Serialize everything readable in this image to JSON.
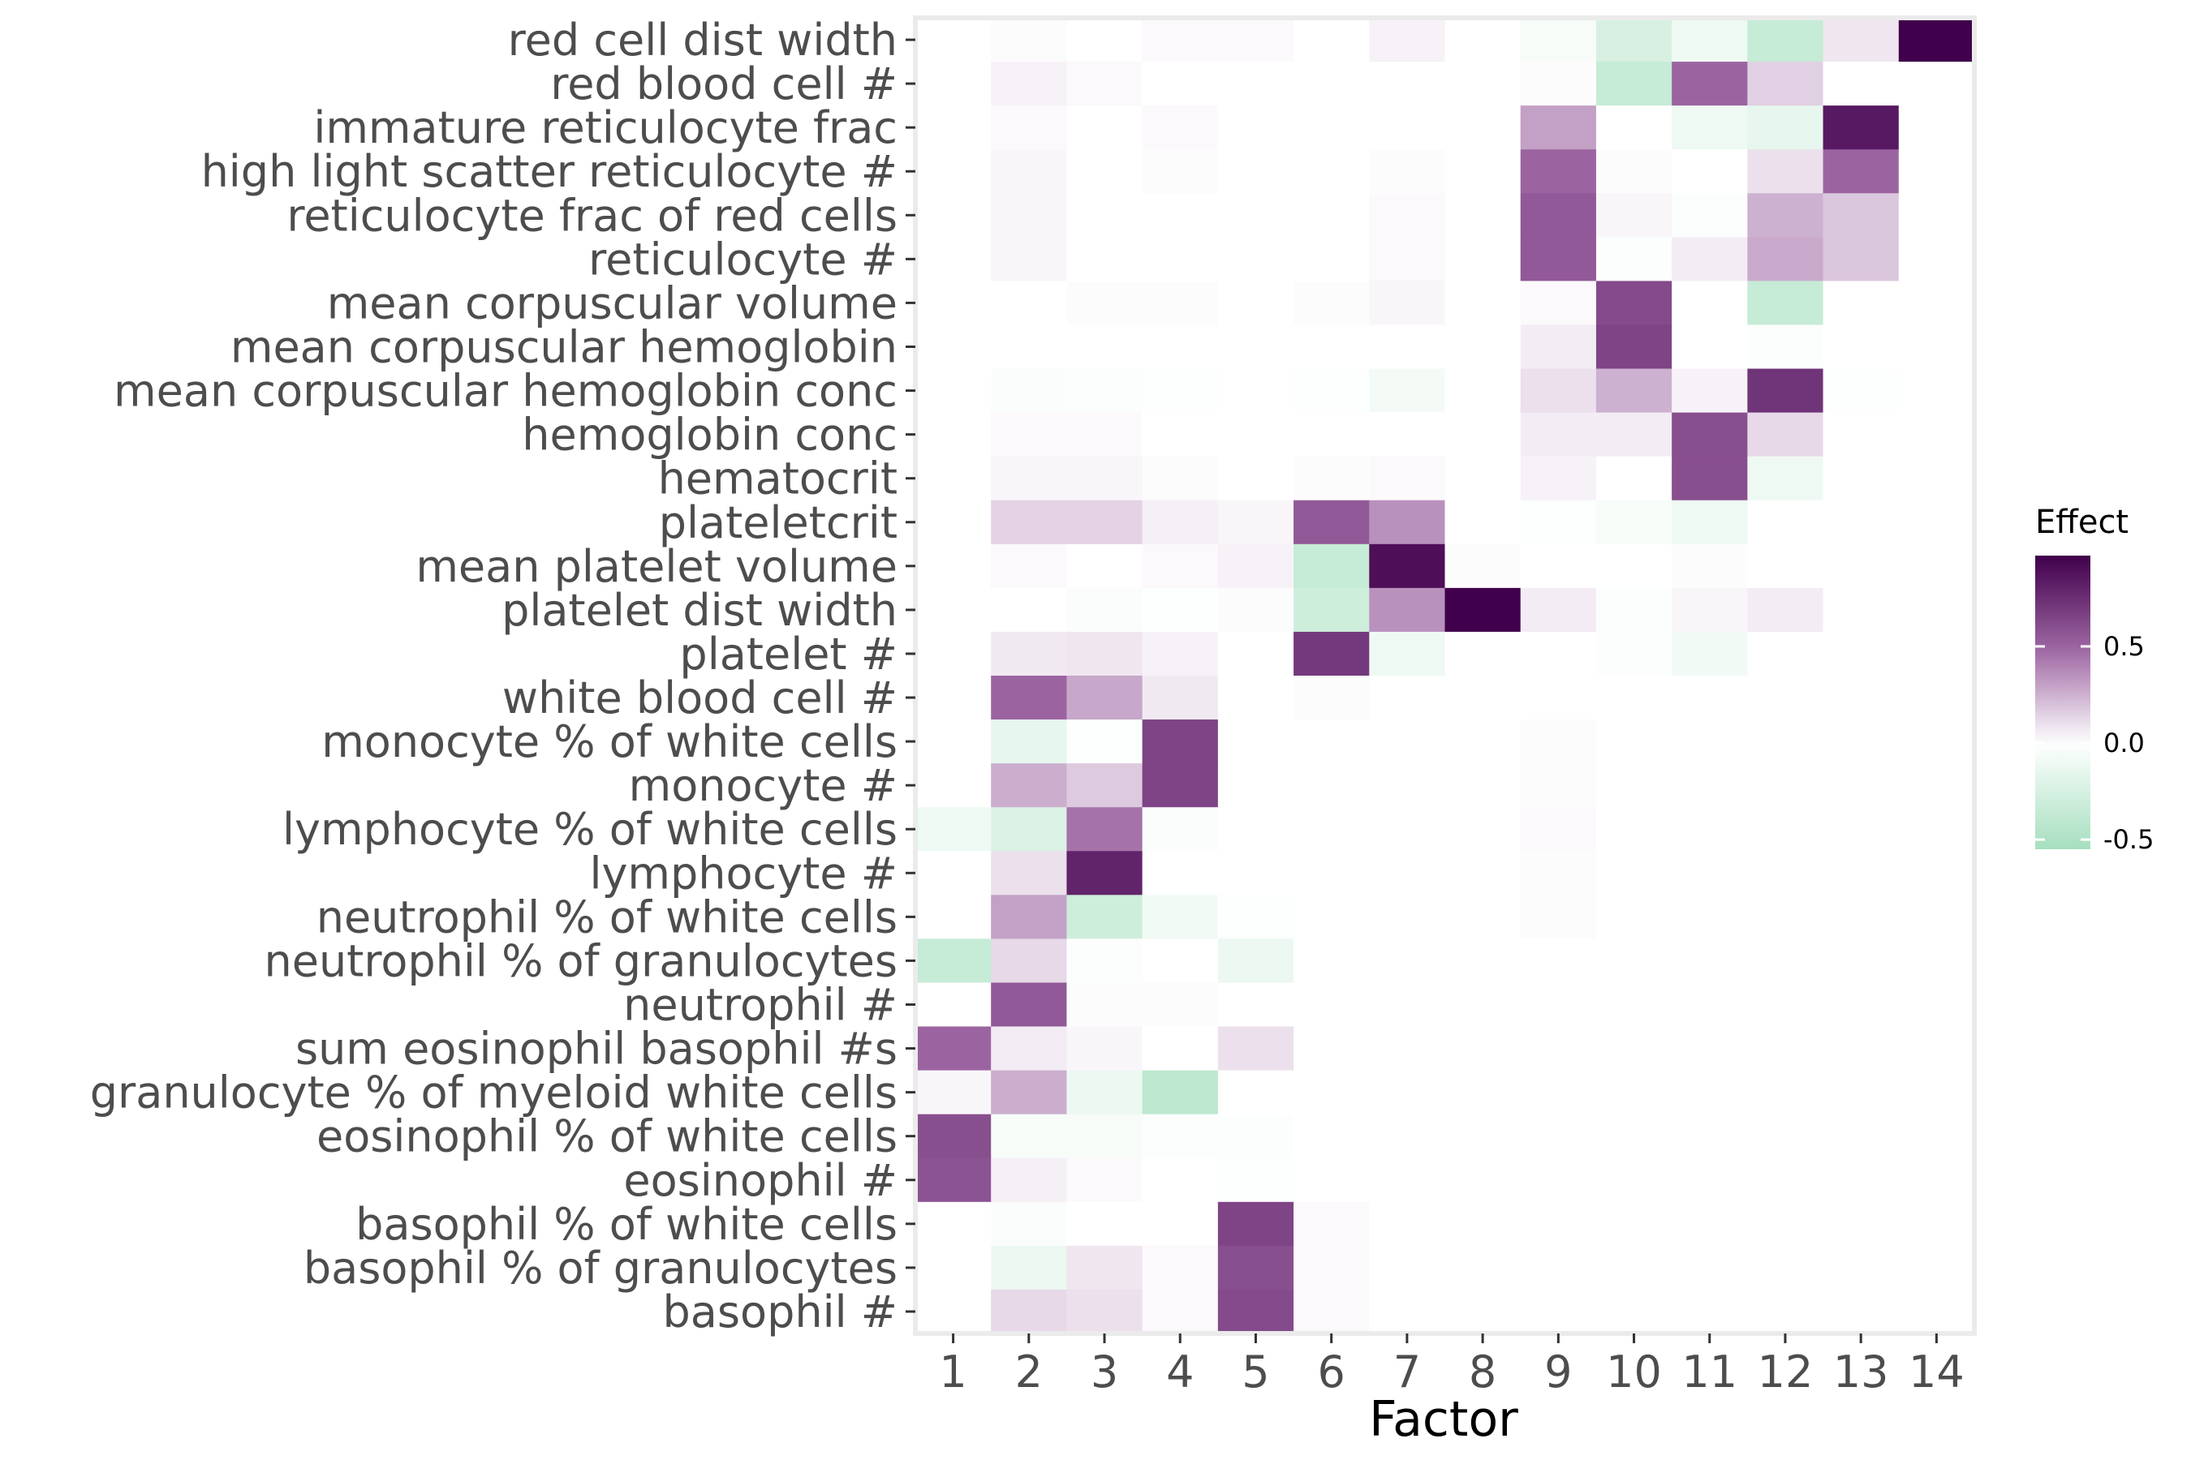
{
  "chart_data": {
    "type": "heatmap",
    "title": "",
    "xlabel": "Factor",
    "ylabel": "",
    "x": [
      "1",
      "2",
      "3",
      "4",
      "5",
      "6",
      "7",
      "8",
      "9",
      "10",
      "11",
      "12",
      "13",
      "14"
    ],
    "y": [
      "red cell dist width",
      "red blood cell #",
      "immature reticulocyte frac",
      "high light scatter reticulocyte #",
      "reticulocyte frac of red cells",
      "reticulocyte #",
      "mean corpuscular volume",
      "mean corpuscular hemoglobin",
      "mean corpuscular hemoglobin conc",
      "hemoglobin conc",
      "hematocrit",
      "plateletcrit",
      "mean platelet volume",
      "platelet dist width",
      "platelet #",
      "white blood cell #",
      "monocyte % of white cells",
      "monocyte #",
      "lymphocyte % of white cells",
      "lymphocyte #",
      "neutrophil % of white cells",
      "neutrophil % of granulocytes",
      "neutrophil #",
      "sum eosinophil basophil #s",
      "granulocyte % of myeloid white cells",
      "eosinophil % of white cells",
      "eosinophil #",
      "basophil % of white cells",
      "basophil % of granulocytes",
      "basophil #"
    ],
    "values": [
      [
        0,
        0.01,
        0,
        0.02,
        0.02,
        0,
        0.04,
        0,
        -0.05,
        -0.25,
        -0.1,
        -0.35,
        0.08,
        0.97
      ],
      [
        0,
        0.04,
        0.02,
        0,
        0,
        0,
        0,
        0,
        0.01,
        -0.35,
        0.5,
        0.15,
        0,
        0
      ],
      [
        0,
        0.02,
        0,
        0.02,
        0,
        0,
        0,
        0,
        0.3,
        0,
        -0.1,
        -0.15,
        0.85,
        0
      ],
      [
        0,
        0.03,
        0,
        0.01,
        0,
        0,
        0.01,
        0,
        0.5,
        0.01,
        0,
        0.1,
        0.5,
        0
      ],
      [
        0,
        0.03,
        0,
        0,
        0,
        0,
        0.02,
        0,
        0.55,
        0.03,
        -0.02,
        0.25,
        0.18,
        0
      ],
      [
        0,
        0.03,
        0,
        0,
        0,
        0,
        0.02,
        0,
        0.55,
        -0.02,
        0.06,
        0.27,
        0.18,
        0
      ],
      [
        0,
        0,
        0.01,
        0.01,
        0,
        0.01,
        0.03,
        0,
        0.02,
        0.62,
        0,
        -0.35,
        0,
        0
      ],
      [
        0,
        0,
        0,
        0,
        0,
        0,
        0,
        0,
        0.06,
        0.65,
        0,
        -0.02,
        0,
        0
      ],
      [
        0,
        -0.03,
        -0.02,
        -0.01,
        0,
        -0.01,
        -0.07,
        0,
        0.1,
        0.25,
        0.04,
        0.72,
        -0.01,
        0
      ],
      [
        0,
        0.02,
        0.02,
        0,
        0,
        0,
        0,
        0,
        0.06,
        0.06,
        0.6,
        0.12,
        0,
        0
      ],
      [
        0,
        0.03,
        0.03,
        0.01,
        0,
        0.01,
        0.02,
        0,
        0.04,
        0,
        0.6,
        -0.1,
        0,
        0
      ],
      [
        0,
        0.14,
        0.14,
        0.05,
        0.03,
        0.55,
        0.35,
        0,
        -0.01,
        -0.05,
        -0.1,
        0,
        0,
        0
      ],
      [
        0,
        0.02,
        0,
        0.02,
        0.04,
        -0.35,
        0.9,
        0.01,
        0,
        0,
        0.01,
        0,
        0,
        0
      ],
      [
        0,
        0,
        -0.03,
        -0.01,
        0.01,
        -0.3,
        0.35,
        0.97,
        0.06,
        -0.02,
        0.03,
        0.06,
        0,
        0
      ],
      [
        0,
        0.07,
        0.08,
        0.04,
        0,
        0.7,
        -0.1,
        0,
        0,
        -0.02,
        -0.08,
        0,
        0,
        0
      ],
      [
        0,
        0.5,
        0.28,
        0.07,
        0,
        0.01,
        0,
        0,
        0,
        0,
        0,
        0,
        0,
        0
      ],
      [
        0,
        -0.15,
        -0.01,
        0.65,
        0,
        0,
        0,
        0,
        0.01,
        0,
        0,
        0,
        0,
        0
      ],
      [
        0,
        0.26,
        0.17,
        0.65,
        0,
        0,
        0,
        0,
        0.01,
        0,
        0,
        0,
        0,
        0
      ],
      [
        -0.1,
        -0.22,
        0.45,
        -0.03,
        0,
        0,
        0,
        0,
        0.02,
        0,
        0,
        0,
        0,
        0
      ],
      [
        0,
        0.1,
        0.8,
        0,
        0,
        0,
        0,
        0,
        0.01,
        0,
        0,
        0,
        0,
        0
      ],
      [
        0,
        0.3,
        -0.3,
        -0.08,
        -0.01,
        0,
        0,
        0,
        0.01,
        0,
        0,
        0,
        0,
        0
      ],
      [
        -0.35,
        0.12,
        -0.02,
        0,
        -0.12,
        0,
        0,
        0,
        0,
        0,
        0,
        0,
        0,
        0
      ],
      [
        0,
        0.55,
        0.01,
        0.01,
        0,
        0,
        0,
        0,
        0,
        0,
        0,
        0,
        0,
        0
      ],
      [
        0.5,
        0.06,
        0.03,
        0,
        0.1,
        0,
        0,
        0,
        0,
        0,
        0,
        0,
        0,
        0
      ],
      [
        0.03,
        0.26,
        -0.12,
        -0.4,
        0,
        0,
        0,
        0,
        0,
        0,
        0,
        0,
        0,
        0
      ],
      [
        0.6,
        -0.05,
        -0.05,
        -0.02,
        -0.02,
        0,
        0,
        0,
        0,
        0,
        0,
        0,
        0,
        0
      ],
      [
        0.58,
        0.05,
        0.02,
        0,
        -0.01,
        0,
        0,
        0,
        0,
        0,
        0,
        0,
        0,
        0
      ],
      [
        0,
        -0.03,
        0,
        0,
        0.65,
        0.02,
        0,
        0,
        0,
        0,
        0,
        0,
        0,
        0
      ],
      [
        0,
        -0.12,
        0.08,
        0.02,
        0.6,
        0.02,
        0,
        0,
        0,
        0,
        0,
        0,
        0,
        0
      ],
      [
        0,
        0.12,
        0.1,
        0.02,
        0.62,
        0.02,
        0,
        0,
        0,
        0,
        0,
        0,
        0,
        0
      ]
    ],
    "legend": {
      "title": "Effect",
      "placement": "right",
      "ticks": [
        0.5,
        0.0,
        -0.5
      ],
      "tick_labels": [
        "0.5",
        "0.0",
        "-0.5"
      ],
      "range": [
        -0.55,
        0.97
      ]
    },
    "colors": {
      "high": "#40004b",
      "mid_high": "#9e67a3",
      "mid": "#ffffff",
      "low": "#a6dfbf",
      "panel_border": "#ebebeb",
      "tick": "#333333"
    },
    "grid": false
  }
}
